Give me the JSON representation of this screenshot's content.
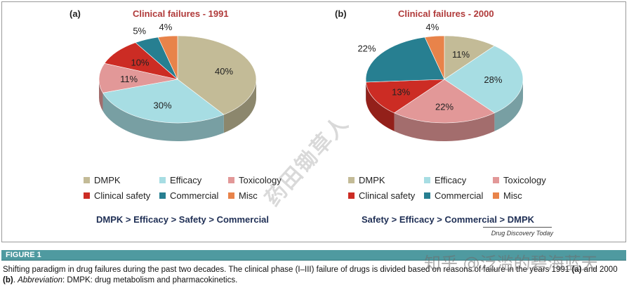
{
  "colors": {
    "DMPK": "#c3bb97",
    "Efficacy": "#a7dde3",
    "Toxicology": "#e29898",
    "Clinical safety": "#cc2c24",
    "Commercial": "#277f91",
    "Misc": "#e8834a",
    "figure_bar": "#4f9aa0",
    "title_red": "#b03a3a"
  },
  "chart_data": [
    {
      "type": "pie",
      "panel": "(a)",
      "title": "Clinical failures - 1991",
      "categories": [
        "DMPK",
        "Efficacy",
        "Toxicology",
        "Clinical safety",
        "Commercial",
        "Misc"
      ],
      "values": [
        40,
        30,
        11,
        10,
        5,
        4
      ],
      "labels": [
        "40%",
        "30%",
        "11%",
        "10%",
        "5%",
        "4%"
      ],
      "legend": [
        "DMPK",
        "Efficacy",
        "Toxicology",
        "Clinical safety",
        "Commercial",
        "Misc"
      ],
      "ranking": "DMPK > Efficacy > Safety > Commercial"
    },
    {
      "type": "pie",
      "panel": "(b)",
      "title": "Clinical failures - 2000",
      "categories": [
        "DMPK",
        "Efficacy",
        "Toxicology",
        "Clinical safety",
        "Commercial",
        "Misc"
      ],
      "values": [
        11,
        28,
        22,
        13,
        22,
        4
      ],
      "labels": [
        "11%",
        "28%",
        "22%",
        "13%",
        "22%",
        "4%"
      ],
      "legend": [
        "DMPK",
        "Efficacy",
        "Toxicology",
        "Clinical safety",
        "Commercial",
        "Misc"
      ],
      "ranking": "Safety > Efficacy > Commercial > DMPK"
    }
  ],
  "source": "Drug Discovery Today",
  "figure_label": "FIGURE 1",
  "caption": {
    "part1": "Shifting paradigm in drug failures during the past two decades. The clinical phase (I–III) failure of drugs is divided based on reasons of failure in the years 1991 ",
    "a": "(a)",
    "part2": " and 2000 ",
    "b": "(b)",
    "part3": ". ",
    "abbr_label": "Abbreviation",
    "part4": ": DMPK: drug metabolism and pharmacokinetics."
  },
  "watermarks": {
    "diagonal": "药田锄草人",
    "corner": "知乎 @泛滥的碧海蓝天"
  }
}
